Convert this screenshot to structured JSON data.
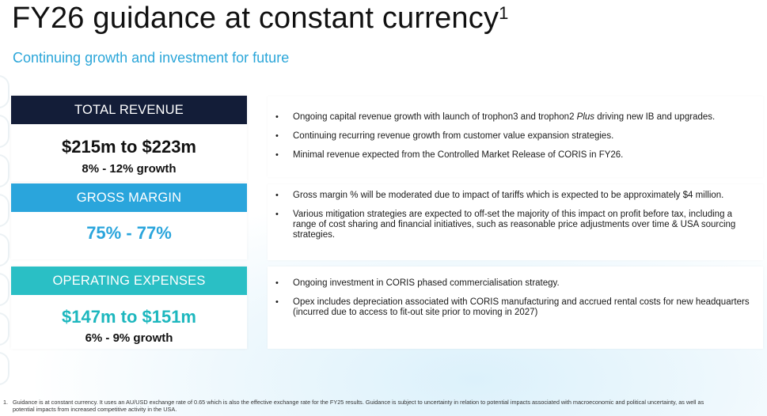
{
  "header": {
    "title": "FY26 guidance at constant currency",
    "title_superscript": "1",
    "subtitle": "Continuing growth and investment for future"
  },
  "panels": [
    {
      "heading": "TOTAL REVENUE",
      "value": "$215m to $223m",
      "growth": "8% - 12% growth",
      "color": "#131d38"
    },
    {
      "heading": "GROSS MARGIN",
      "value": "75% - 77%",
      "growth": "",
      "color": "#2aa5dc"
    },
    {
      "heading": "OPERATING EXPENSES",
      "value": "$147m to $151m",
      "growth": "6% - 9% growth",
      "color": "#2abfc5"
    }
  ],
  "boxes": [
    {
      "bullets": [
        {
          "pre": "Ongoing capital revenue growth with launch of trophon3 and trophon2 ",
          "italic": "Plus",
          "post": " driving new IB and upgrades."
        },
        {
          "pre": "Continuing recurring revenue growth from customer value expansion strategies.",
          "italic": "",
          "post": ""
        },
        {
          "pre": "Minimal revenue expected from the Controlled Market Release of CORIS in FY26.",
          "italic": "",
          "post": ""
        }
      ]
    },
    {
      "bullets": [
        {
          "pre": "Gross margin % will be moderated due to impact of tariffs which is expected to be approximately $4 million.",
          "italic": "",
          "post": ""
        },
        {
          "pre": "Various mitigation strategies are expected to off-set the majority of this impact on profit before tax, including a range of cost sharing and financial initiatives, such as reasonable price adjustments over time & USA sourcing strategies.",
          "italic": "",
          "post": ""
        }
      ]
    },
    {
      "bullets": [
        {
          "pre": "Ongoing investment in CORIS phased commercialisation strategy.",
          "italic": "",
          "post": ""
        },
        {
          "pre": "Opex includes depreciation associated with CORIS manufacturing and accrued rental costs for new headquarters (incurred due to access to fit-out site prior to moving in 2027)",
          "italic": "",
          "post": ""
        }
      ]
    }
  ],
  "bullet_symbol": "•",
  "footnote": {
    "number": "1.",
    "text": "Guidance is at constant currency.  It uses an AU/USD exchange rate of 0.65 which is also the effective exchange rate for the FY25 results. Guidance is subject to uncertainty in relation to potential impacts associated with macroeconomic and political uncertainty, as well as potential impacts from increased competitive activity in the USA."
  }
}
